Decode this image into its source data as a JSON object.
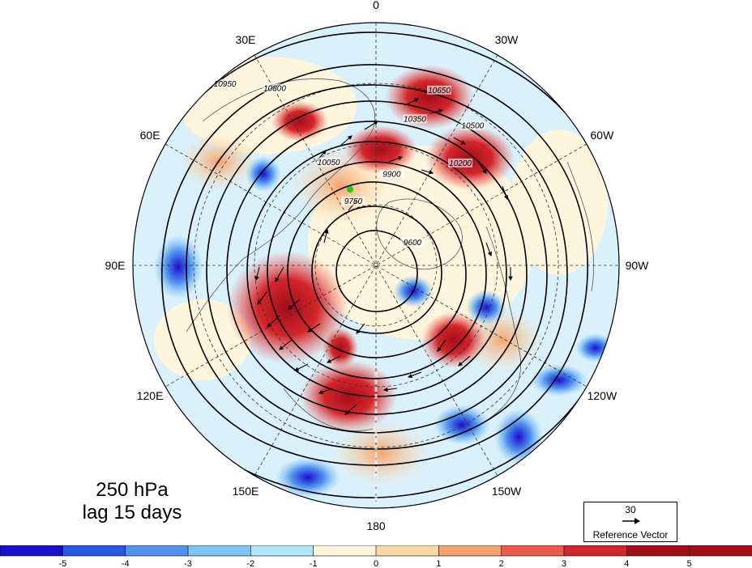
{
  "map": {
    "projection": "north-polar-stereographic",
    "longitude_labels": [
      {
        "text": "0",
        "lon": 0
      },
      {
        "text": "30W",
        "lon": -30
      },
      {
        "text": "60W",
        "lon": -60
      },
      {
        "text": "90W",
        "lon": -90
      },
      {
        "text": "120W",
        "lon": -120
      },
      {
        "text": "150W",
        "lon": -150
      },
      {
        "text": "180",
        "lon": 180
      },
      {
        "text": "150E",
        "lon": 150
      },
      {
        "text": "120E",
        "lon": 120
      },
      {
        "text": "90E",
        "lon": 90
      },
      {
        "text": "60E",
        "lon": 60
      },
      {
        "text": "30E",
        "lon": 30
      }
    ],
    "contour_labels": [
      "10950",
      "10800",
      "10650",
      "10500",
      "10350",
      "10200",
      "10050",
      "9900",
      "9750",
      "9600"
    ],
    "colors": {
      "neg5": "#1a0fcf",
      "neg4": "#2a58e6",
      "neg3": "#4f94ee",
      "neg2": "#7cc6f4",
      "neg1": "#b0e6fa",
      "pos0": "#fdf6dd",
      "pos1": "#fcd9a2",
      "pos2": "#f4a36e",
      "pos3": "#ec5a4a",
      "pos4": "#d3252b",
      "pos5": "#a30e1a",
      "marker": "#1ec81e"
    }
  },
  "panel": {
    "line1": "250 hPa",
    "line2": "lag 15 days"
  },
  "reference_vector": {
    "magnitude": "30",
    "caption": "Reference Vector"
  },
  "colorbar": {
    "ticks": [
      "-5",
      "-4",
      "-3",
      "-2",
      "-1",
      "0",
      "1",
      "2",
      "3",
      "4",
      "5"
    ],
    "colors": [
      "#1a0fcf",
      "#2a58e6",
      "#4f94ee",
      "#7cc6f4",
      "#b0e6fa",
      "#fdf6dd",
      "#fcd9a2",
      "#f4a36e",
      "#ec5a4a",
      "#d3252b",
      "#a30e1a",
      "#a30e1a"
    ]
  }
}
